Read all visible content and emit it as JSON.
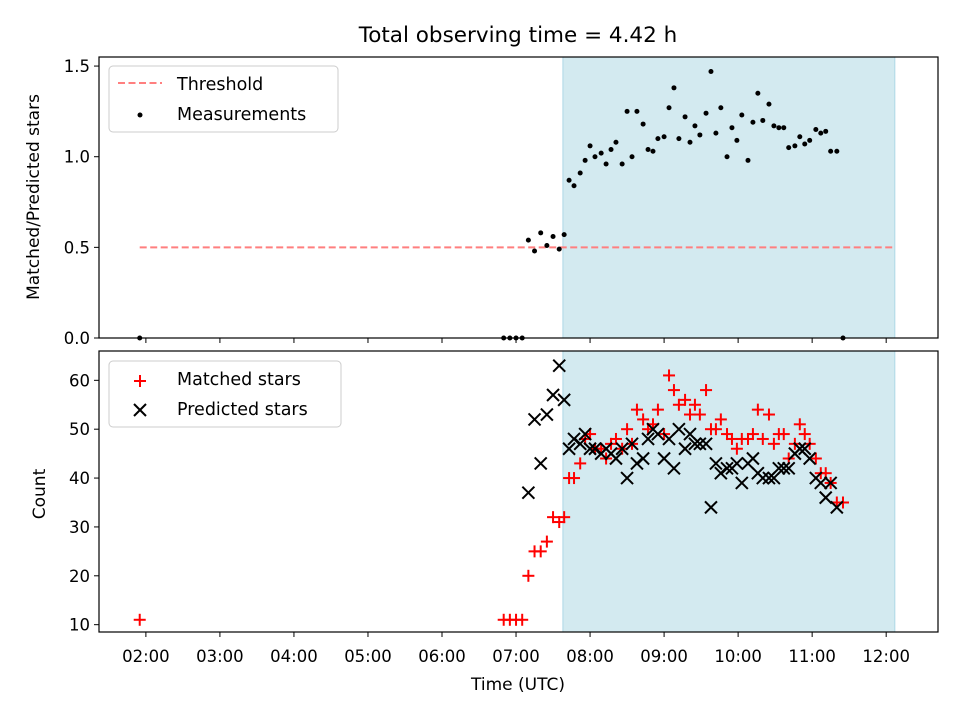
{
  "title": "Total observing time = 4.42 h",
  "colors": {
    "threshold": "#ff7f7f",
    "measurement": "#000000",
    "matched": "#ff0000",
    "predicted": "#000000",
    "span_fill": "#d3eaf0",
    "span_edge": "#add8e6"
  },
  "chart_data": [
    {
      "type": "scatter",
      "ylabel": "Matched/Predicted stars",
      "ylim": [
        0,
        1.55
      ],
      "yticks": [
        "0.0",
        "0.5",
        "1.0",
        "1.5"
      ],
      "legend": {
        "placement": "top-left",
        "entries": [
          "Threshold",
          "Measurements"
        ]
      },
      "x_range": [
        "01:22",
        "12:42"
      ],
      "observing_window": [
        "07:38",
        "12:07"
      ],
      "threshold": {
        "name": "Threshold",
        "value": 0.5,
        "from": "01:55",
        "to": "12:05"
      },
      "series": [
        {
          "name": "Measurements",
          "marker": "dot",
          "points": [
            [
              "01:55",
              0.0
            ],
            [
              "06:50",
              0.0
            ],
            [
              "06:55",
              0.0
            ],
            [
              "07:00",
              0.0
            ],
            [
              "07:05",
              0.0
            ],
            [
              "07:10",
              0.54
            ],
            [
              "07:15",
              0.48
            ],
            [
              "07:20",
              0.58
            ],
            [
              "07:25",
              0.51
            ],
            [
              "07:30",
              0.56
            ],
            [
              "07:35",
              0.49
            ],
            [
              "07:39",
              0.57
            ],
            [
              "07:43",
              0.87
            ],
            [
              "07:47",
              0.84
            ],
            [
              "07:52",
              0.91
            ],
            [
              "07:56",
              0.98
            ],
            [
              "08:00",
              1.06
            ],
            [
              "08:04",
              1.0
            ],
            [
              "08:09",
              1.02
            ],
            [
              "08:13",
              0.96
            ],
            [
              "08:17",
              1.04
            ],
            [
              "08:21",
              1.08
            ],
            [
              "08:26",
              0.96
            ],
            [
              "08:30",
              1.25
            ],
            [
              "08:34",
              1.0
            ],
            [
              "08:38",
              1.25
            ],
            [
              "08:43",
              1.18
            ],
            [
              "08:47",
              1.04
            ],
            [
              "08:51",
              1.03
            ],
            [
              "08:55",
              1.1
            ],
            [
              "09:00",
              1.11
            ],
            [
              "09:04",
              1.27
            ],
            [
              "09:08",
              1.38
            ],
            [
              "09:12",
              1.1
            ],
            [
              "09:17",
              1.22
            ],
            [
              "09:21",
              1.08
            ],
            [
              "09:25",
              1.17
            ],
            [
              "09:29",
              1.12
            ],
            [
              "09:34",
              1.24
            ],
            [
              "09:38",
              1.47
            ],
            [
              "09:42",
              1.13
            ],
            [
              "09:46",
              1.27
            ],
            [
              "09:51",
              1.0
            ],
            [
              "09:55",
              1.16
            ],
            [
              "09:59",
              1.09
            ],
            [
              "10:03",
              1.23
            ],
            [
              "10:08",
              0.98
            ],
            [
              "10:12",
              1.19
            ],
            [
              "10:16",
              1.35
            ],
            [
              "10:20",
              1.2
            ],
            [
              "10:25",
              1.29
            ],
            [
              "10:29",
              1.17
            ],
            [
              "10:33",
              1.16
            ],
            [
              "10:37",
              1.16
            ],
            [
              "10:41",
              1.05
            ],
            [
              "10:46",
              1.06
            ],
            [
              "10:50",
              1.11
            ],
            [
              "10:54",
              1.07
            ],
            [
              "10:58",
              1.09
            ],
            [
              "11:03",
              1.15
            ],
            [
              "11:07",
              1.13
            ],
            [
              "11:11",
              1.14
            ],
            [
              "11:15",
              1.03
            ],
            [
              "11:20",
              1.03
            ],
            [
              "11:25",
              0.0
            ]
          ]
        }
      ]
    },
    {
      "type": "scatter",
      "xlabel": "Time (UTC)",
      "ylabel": "Count",
      "ylim": [
        8.5,
        66
      ],
      "yticks": [
        "10",
        "20",
        "30",
        "40",
        "50",
        "60"
      ],
      "xticks": [
        "02:00",
        "03:00",
        "04:00",
        "05:00",
        "06:00",
        "07:00",
        "08:00",
        "09:00",
        "10:00",
        "11:00",
        "12:00"
      ],
      "legend": {
        "placement": "top-left",
        "entries": [
          "Matched stars",
          "Predicted stars"
        ]
      },
      "series": [
        {
          "name": "Matched stars",
          "marker": "plus",
          "points": [
            [
              "01:55",
              11
            ],
            [
              "06:50",
              11
            ],
            [
              "06:55",
              11
            ],
            [
              "07:00",
              11
            ],
            [
              "07:05",
              11
            ],
            [
              "07:10",
              20
            ],
            [
              "07:15",
              25
            ],
            [
              "07:20",
              25
            ],
            [
              "07:25",
              27
            ],
            [
              "07:30",
              32
            ],
            [
              "07:35",
              31
            ],
            [
              "07:39",
              32
            ],
            [
              "07:43",
              40
            ],
            [
              "07:47",
              40
            ],
            [
              "07:52",
              43
            ],
            [
              "07:56",
              48
            ],
            [
              "08:00",
              49
            ],
            [
              "08:04",
              46
            ],
            [
              "08:09",
              46
            ],
            [
              "08:13",
              44
            ],
            [
              "08:17",
              47
            ],
            [
              "08:21",
              48
            ],
            [
              "08:26",
              46
            ],
            [
              "08:30",
              50
            ],
            [
              "08:34",
              47
            ],
            [
              "08:38",
              54
            ],
            [
              "08:43",
              52
            ],
            [
              "08:47",
              50
            ],
            [
              "08:51",
              51
            ],
            [
              "08:55",
              54
            ],
            [
              "09:00",
              49
            ],
            [
              "09:04",
              61
            ],
            [
              "09:08",
              58
            ],
            [
              "09:12",
              55
            ],
            [
              "09:17",
              56
            ],
            [
              "09:21",
              53
            ],
            [
              "09:25",
              55
            ],
            [
              "09:29",
              53
            ],
            [
              "09:34",
              58
            ],
            [
              "09:38",
              50
            ],
            [
              "09:42",
              50
            ],
            [
              "09:46",
              52
            ],
            [
              "09:51",
              49
            ],
            [
              "09:55",
              48
            ],
            [
              "09:59",
              46
            ],
            [
              "10:03",
              48
            ],
            [
              "10:08",
              48
            ],
            [
              "10:12",
              49
            ],
            [
              "10:16",
              54
            ],
            [
              "10:20",
              48
            ],
            [
              "10:25",
              53
            ],
            [
              "10:29",
              47
            ],
            [
              "10:33",
              49
            ],
            [
              "10:37",
              49
            ],
            [
              "10:41",
              44
            ],
            [
              "10:46",
              47
            ],
            [
              "10:50",
              51
            ],
            [
              "10:54",
              49
            ],
            [
              "10:58",
              47
            ],
            [
              "11:03",
              44
            ],
            [
              "11:07",
              41
            ],
            [
              "11:11",
              41
            ],
            [
              "11:15",
              39
            ],
            [
              "11:20",
              35
            ],
            [
              "11:25",
              35
            ]
          ]
        },
        {
          "name": "Predicted stars",
          "marker": "x",
          "points": [
            [
              "07:10",
              37
            ],
            [
              "07:15",
              52
            ],
            [
              "07:20",
              43
            ],
            [
              "07:25",
              53
            ],
            [
              "07:30",
              57
            ],
            [
              "07:35",
              63
            ],
            [
              "07:39",
              56
            ],
            [
              "07:43",
              46
            ],
            [
              "07:47",
              48
            ],
            [
              "07:52",
              47
            ],
            [
              "07:56",
              49
            ],
            [
              "08:00",
              46
            ],
            [
              "08:04",
              46
            ],
            [
              "08:09",
              45
            ],
            [
              "08:13",
              46
            ],
            [
              "08:17",
              45
            ],
            [
              "08:21",
              44
            ],
            [
              "08:26",
              46
            ],
            [
              "08:30",
              40
            ],
            [
              "08:34",
              47
            ],
            [
              "08:38",
              43
            ],
            [
              "08:43",
              44
            ],
            [
              "08:47",
              48
            ],
            [
              "08:51",
              50
            ],
            [
              "08:55",
              49
            ],
            [
              "09:00",
              44
            ],
            [
              "09:04",
              48
            ],
            [
              "09:08",
              42
            ],
            [
              "09:12",
              50
            ],
            [
              "09:17",
              46
            ],
            [
              "09:21",
              49
            ],
            [
              "09:25",
              47
            ],
            [
              "09:29",
              47
            ],
            [
              "09:34",
              47
            ],
            [
              "09:38",
              34
            ],
            [
              "09:42",
              43
            ],
            [
              "09:46",
              41
            ],
            [
              "09:51",
              42
            ],
            [
              "09:55",
              42
            ],
            [
              "09:59",
              43
            ],
            [
              "10:03",
              39
            ],
            [
              "10:08",
              43
            ],
            [
              "10:12",
              44
            ],
            [
              "10:16",
              41
            ],
            [
              "10:20",
              40
            ],
            [
              "10:25",
              40
            ],
            [
              "10:29",
              40
            ],
            [
              "10:33",
              42
            ],
            [
              "10:37",
              42
            ],
            [
              "10:41",
              42
            ],
            [
              "10:46",
              45
            ],
            [
              "10:50",
              46
            ],
            [
              "10:54",
              46
            ],
            [
              "10:58",
              44
            ],
            [
              "11:03",
              40
            ],
            [
              "11:07",
              39
            ],
            [
              "11:11",
              36
            ],
            [
              "11:15",
              39
            ],
            [
              "11:20",
              34
            ]
          ]
        }
      ]
    }
  ]
}
